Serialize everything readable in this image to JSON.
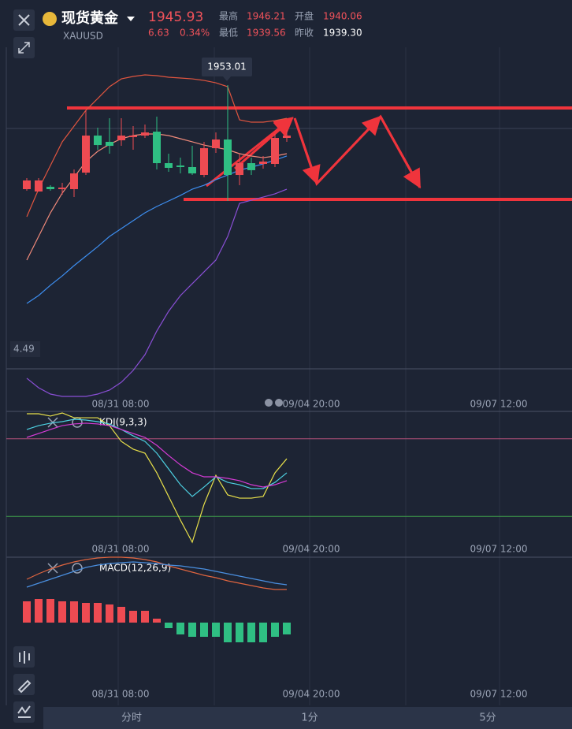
{
  "header": {
    "title": "现货黄金",
    "symbol": "XAUUSD",
    "price": "1945.93",
    "change": "6.63",
    "change_pct": "0.34%",
    "high_label": "最高",
    "high": "1946.21",
    "open_label": "开盘",
    "open": "1940.06",
    "low_label": "最低",
    "low": "1939.56",
    "prev_label": "昨收",
    "prev": "1939.30",
    "side_label": "4.49"
  },
  "chart_data": [
    {
      "type": "candlestick",
      "up_color": "#ee4b52",
      "down_color": "#2fbf83",
      "open": [
        1938.41,
        1938.08,
        1938.74,
        1938.41,
        1938.41,
        1940.73,
        1945.93,
        1945.05,
        1945.27,
        1945.71,
        1945.93,
        1946.48,
        1942.06,
        1941.73,
        1941.51,
        1940.4,
        1944.16,
        1945.38,
        1940.4,
        1942.06,
        1941.95,
        1941.95,
        1945.6
      ],
      "high": [
        1939.96,
        1939.96,
        1938.96,
        1939.3,
        1941.18,
        1949.47,
        1947.04,
        1948.36,
        1948.36,
        1947.26,
        1947.48,
        1948.59,
        1943.39,
        1942.83,
        1944.49,
        1945.05,
        1946.37,
        1953.01,
        1943.39,
        1942.83,
        1943.06,
        1946.15,
        1946.71
      ],
      "low": [
        1938.19,
        1938.08,
        1938.19,
        1937.64,
        1937.3,
        1940.4,
        1943.94,
        1943.39,
        1944.49,
        1943.94,
        1945.6,
        1941.18,
        1940.84,
        1940.62,
        1940.4,
        1940.07,
        1943.5,
        1936.75,
        1938.96,
        1940.4,
        1941.29,
        1941.51,
        1945.05
      ],
      "close": [
        1939.63,
        1939.63,
        1938.41,
        1938.63,
        1940.62,
        1945.93,
        1944.6,
        1944.49,
        1945.93,
        1945.93,
        1946.37,
        1942.06,
        1941.4,
        1941.51,
        1940.62,
        1944.16,
        1945.38,
        1940.4,
        1942.06,
        1941.07,
        1942.28,
        1945.6,
        1945.93
      ],
      "lines": [
        {
          "color": "#e0553f",
          "values": [
            1934.54,
            1938.41,
            1941.73,
            1945.05,
            1947.26,
            1949.47,
            1951.13,
            1952.79,
            1953.89,
            1954.23,
            1954.45,
            1954.34,
            1954.12,
            1954.01,
            1953.89,
            1953.67,
            1953.34,
            1952.79,
            1948.14,
            1947.81,
            1947.81,
            1948.03,
            1948.36
          ]
        },
        {
          "color": "#f08a7a",
          "values": [
            1928.46,
            1931.77,
            1935.09,
            1937.86,
            1940.07,
            1942.28,
            1943.72,
            1944.71,
            1945.49,
            1945.93,
            1946.15,
            1946.15,
            1945.93,
            1945.49,
            1945.05,
            1944.6,
            1944.27,
            1943.94,
            1943.39,
            1943.06,
            1942.83,
            1943.06,
            1943.39
          ]
        },
        {
          "color": "#8a4fd6",
          "values": [
            1911.87,
            1910.54,
            1909.65,
            1909.32,
            1909.32,
            1909.32,
            1909.65,
            1910.21,
            1911.31,
            1912.97,
            1915.18,
            1918.5,
            1921.27,
            1923.48,
            1925.14,
            1926.8,
            1928.46,
            1931.77,
            1936.42,
            1936.86,
            1937.3,
            1937.75,
            1938.41
          ]
        },
        {
          "color": "#3d8ef0",
          "values": [
            1922.37,
            1923.48,
            1924.92,
            1926.24,
            1927.68,
            1929.01,
            1930.34,
            1931.77,
            1932.88,
            1933.99,
            1935.09,
            1935.98,
            1936.75,
            1937.53,
            1938.41,
            1938.96,
            1939.74,
            1940.4,
            1941.07,
            1941.51,
            1941.95,
            1942.5,
            1943.06
          ]
        }
      ],
      "x_labels": [
        "08/31 08:00",
        "09/04 20:00",
        "09/07 12:00"
      ]
    },
    {
      "type": "line",
      "title": "KDJ(9,3,3)",
      "ylim": [
        0,
        100
      ],
      "levels": [
        80,
        20
      ],
      "level_colors": [
        "#b5507a",
        "#3fa04a"
      ],
      "series": [
        {
          "color": "#e8e04a",
          "values": [
            99.4,
            99.4,
            97.6,
            100,
            96.3,
            96.3,
            96.3,
            90.2,
            78.0,
            72.0,
            68.9,
            53.7,
            35.4,
            17.1,
            0,
            29.3,
            51.8,
            36.6,
            34.1,
            34.1,
            35.4,
            53.7,
            64.6
          ]
        },
        {
          "color": "#4dd0e1",
          "values": [
            87.2,
            90.2,
            92.1,
            93.3,
            95.1,
            94.5,
            93.3,
            91.5,
            87.2,
            82.3,
            78.0,
            68.9,
            56.7,
            44.5,
            35.4,
            42.7,
            50.6,
            46.3,
            44.5,
            41.5,
            41.5,
            46.3,
            53.7
          ]
        },
        {
          "color": "#d63bd6",
          "values": [
            81.1,
            84.1,
            87.2,
            90.2,
            91.5,
            92.1,
            91.5,
            90.2,
            87.2,
            84.1,
            81.1,
            75.0,
            67.1,
            59.8,
            53.7,
            50.6,
            50.6,
            49.4,
            47.6,
            44.5,
            42.7,
            44.5,
            47.6
          ]
        }
      ],
      "x_labels": [
        "08/31 08:00",
        "09/04 20:00",
        "09/07 12:00"
      ]
    },
    {
      "type": "bar",
      "title": "MACD(12,26,9)",
      "up_color": "#ee4b52",
      "down_color": "#2fbf83",
      "values": [
        2.7,
        3.0,
        3.0,
        2.7,
        2.7,
        2.5,
        2.5,
        2.3,
        2.0,
        1.5,
        1.5,
        0.5,
        -0.7,
        -1.5,
        -1.8,
        -1.8,
        -1.8,
        -2.5,
        -2.5,
        -2.5,
        -2.5,
        -1.8,
        -1.5
      ],
      "lines": [
        {
          "color": "#e0653f",
          "values": [
            5.5,
            6.2,
            6.8,
            7.3,
            7.7,
            8.0,
            8.2,
            8.3,
            8.3,
            8.2,
            8.0,
            7.7,
            7.2,
            6.8,
            6.4,
            6.0,
            5.7,
            5.3,
            5.0,
            4.7,
            4.4,
            4.2,
            4.2
          ]
        },
        {
          "color": "#4a8fe0",
          "values": [
            4.5,
            5.0,
            5.5,
            6.0,
            6.5,
            7.0,
            7.3,
            7.5,
            7.6,
            7.7,
            7.6,
            7.5,
            7.3,
            7.2,
            7.0,
            6.8,
            6.5,
            6.2,
            5.9,
            5.6,
            5.3,
            5.0,
            4.8
          ]
        }
      ],
      "x_labels": [
        "08/31 08:00",
        "09/04 20:00",
        "09/07 12:00"
      ]
    }
  ],
  "tabs": [
    "分时",
    "1分",
    "5分"
  ]
}
